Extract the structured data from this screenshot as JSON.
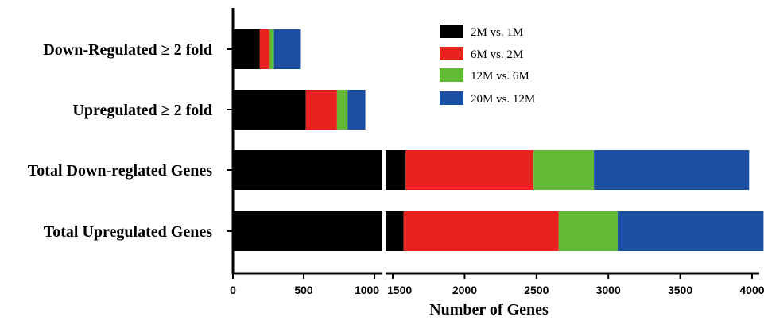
{
  "chart_data": {
    "type": "bar",
    "orientation": "horizontal",
    "stacked": true,
    "axis_break": [
      1050,
      1450
    ],
    "categories": [
      "Down-Regulated ≥ 2 fold",
      "Upregulated ≥ 2 fold",
      "Total Down-reglated Genes",
      "Total Upregulated Genes"
    ],
    "series": [
      {
        "name": "2M vs. 1M",
        "color": "#000000",
        "values": [
          190,
          515,
          1590,
          1575
        ]
      },
      {
        "name": "6M vs. 2M",
        "color": "#e8221e",
        "values": [
          65,
          220,
          890,
          1080
        ]
      },
      {
        "name": "12M vs. 6M",
        "color": "#62b934",
        "values": [
          35,
          75,
          420,
          410
        ]
      },
      {
        "name": "20M vs. 12M",
        "color": "#1b4fa3",
        "values": [
          185,
          125,
          1080,
          1015
        ]
      }
    ],
    "xlabel": "Number of Genes",
    "xticks_left": [
      0,
      500,
      1000
    ],
    "xticks_right": [
      1500,
      2000,
      2500,
      3000,
      3500,
      4000
    ],
    "xlim": [
      0,
      4050
    ],
    "legend_position": "top-right",
    "grid": false
  }
}
